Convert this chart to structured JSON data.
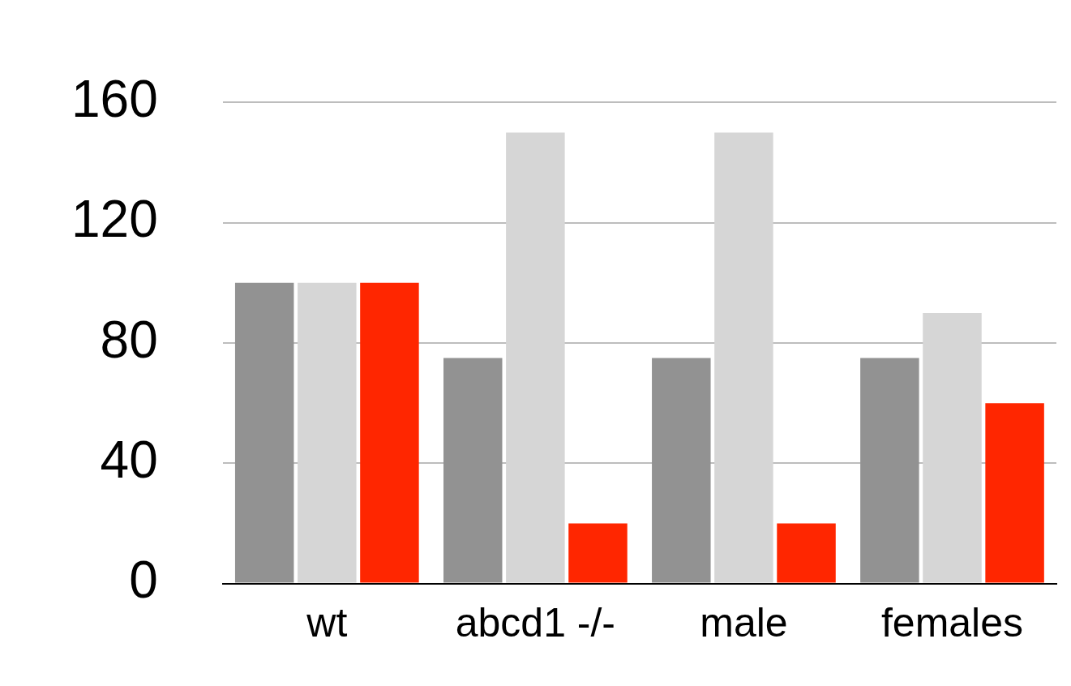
{
  "chart_data": {
    "type": "bar",
    "categories": [
      "wt",
      "abcd1 -/-",
      "male",
      "females"
    ],
    "series": [
      {
        "color": "#929292",
        "values": [
          100,
          75,
          75,
          75
        ]
      },
      {
        "color": "#d6d6d6",
        "values": [
          100,
          150,
          150,
          90
        ]
      },
      {
        "color": "#ff2600",
        "values": [
          100,
          20,
          20,
          60
        ]
      }
    ],
    "ylim": [
      0,
      160
    ],
    "yticks": [
      0,
      40,
      80,
      120,
      160
    ],
    "grid": "y",
    "legend": false
  }
}
